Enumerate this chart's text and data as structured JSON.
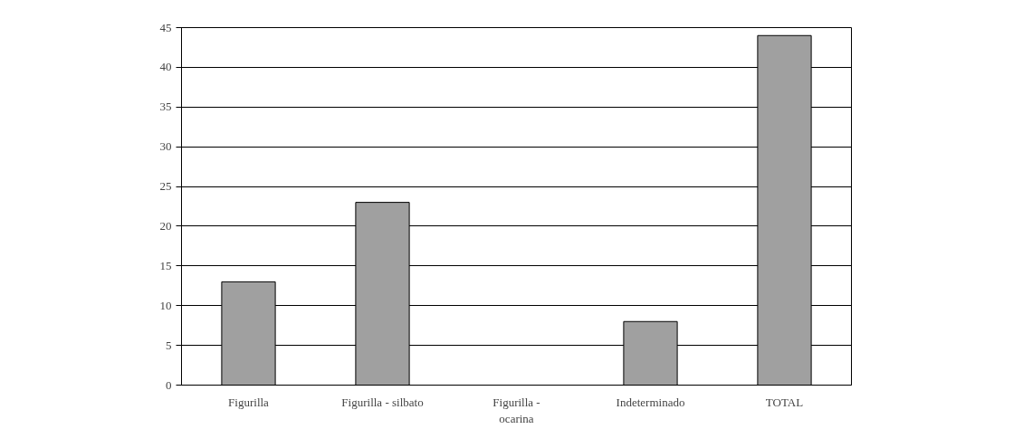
{
  "chart_data": {
    "type": "bar",
    "categories": [
      "Figurilla",
      "Figurilla - silbato",
      "Figurilla -\nocarina",
      "Indeterminado",
      "TOTAL"
    ],
    "values": [
      13,
      23,
      0,
      8,
      44
    ],
    "color": "#a0a0a0",
    "ylim": [
      0,
      45
    ],
    "yticks": [
      0,
      5,
      10,
      15,
      20,
      25,
      30,
      35,
      40,
      45
    ],
    "grid": "y"
  }
}
